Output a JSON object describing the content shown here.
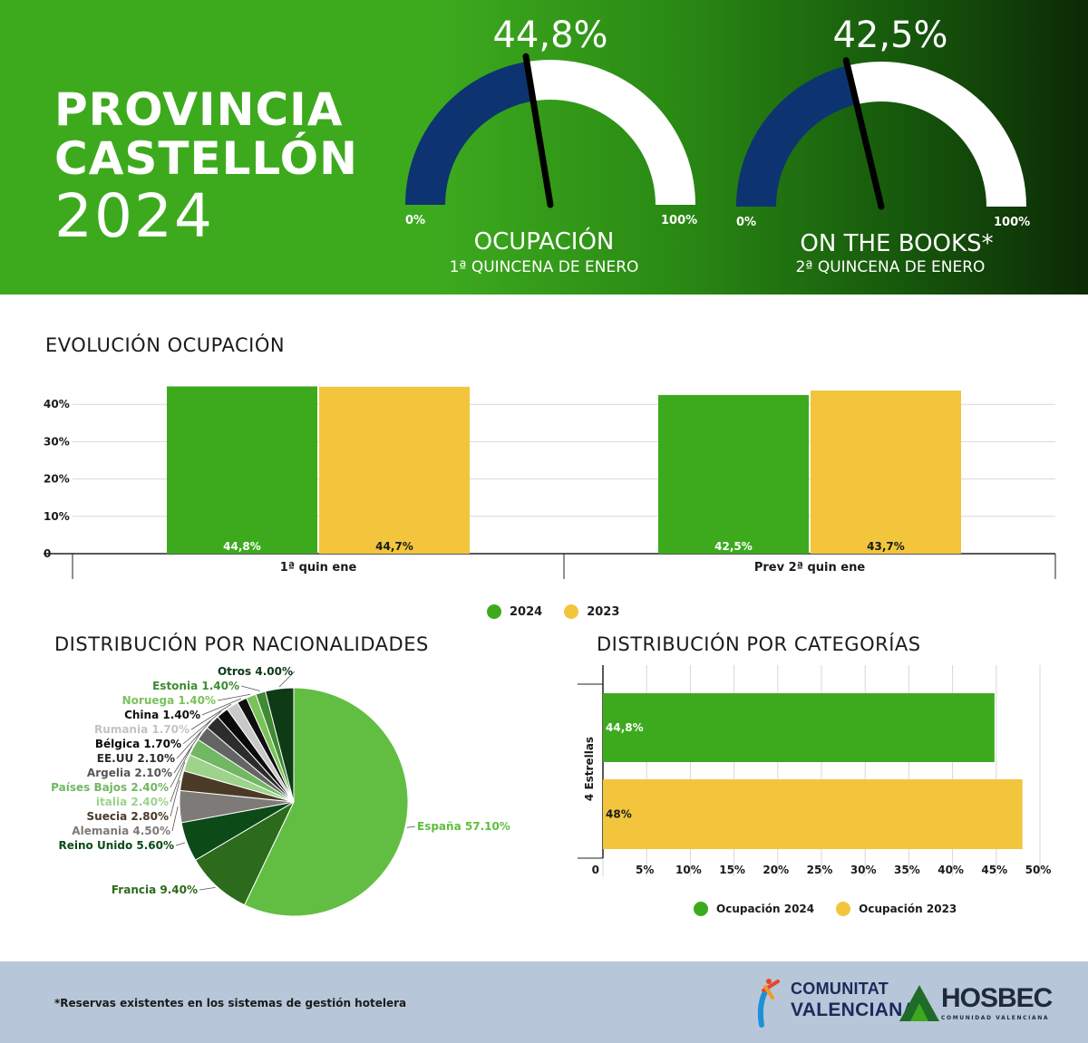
{
  "header": {
    "title_line1": "PROVINCIA",
    "title_line2": "CASTELLÓN",
    "title_line3": "2024"
  },
  "gauges": [
    {
      "value_label": "44,8%",
      "value": 44.8,
      "min_label": "0%",
      "max_label": "100%",
      "title": "OCUPACIÓN",
      "subtitle": "1ª QUINCENA DE ENERO"
    },
    {
      "value_label": "42,5%",
      "value": 42.5,
      "min_label": "0%",
      "max_label": "100%",
      "title": "ON THE BOOKS*",
      "subtitle": "2ª QUINCENA DE ENERO"
    }
  ],
  "colors": {
    "green": "#3daa1e",
    "yellow": "#f2c53d",
    "navy": "#0d3470",
    "white": "#ffffff"
  },
  "evolution": {
    "title": "EVOLUCIÓN OCUPACIÓN",
    "legend": [
      "2024",
      "2023"
    ]
  },
  "nationalities": {
    "title": "DISTRIBUCIÓN POR NACIONALIDADES"
  },
  "categories": {
    "title": "DISTRIBUCIÓN POR CATEGORÍAS",
    "legend": [
      "Ocupación 2024",
      "Ocupación 2023"
    ]
  },
  "chart_data": [
    {
      "type": "bar",
      "title": "EVOLUCIÓN OCUPACIÓN",
      "categories": [
        "1ª quin ene",
        "Prev 2ª quin ene"
      ],
      "series": [
        {
          "name": "2024",
          "values": [
            44.8,
            42.5
          ],
          "labels": [
            "44,8%",
            "42,5%"
          ],
          "color": "#3daa1e"
        },
        {
          "name": "2023",
          "values": [
            44.7,
            43.7
          ],
          "labels": [
            "44,7%",
            "43,7%"
          ],
          "color": "#f2c53d"
        }
      ],
      "y_ticks": [
        "0",
        "10%",
        "20%",
        "30%",
        "40%"
      ],
      "ylim": [
        0,
        45
      ],
      "grid": true,
      "legend": "bottom"
    },
    {
      "type": "pie",
      "title": "DISTRIBUCIÓN POR NACIONALIDADES",
      "slices": [
        {
          "label": "España 57.10%",
          "value": 57.1,
          "color": "#62be42"
        },
        {
          "label": "Francia 9.40%",
          "value": 9.4,
          "color": "#2c6a1c"
        },
        {
          "label": "Reino Unido 5.60%",
          "value": 5.6,
          "color": "#0c4a17"
        },
        {
          "label": "Alemania 4.50%",
          "value": 4.5,
          "color": "#7e7a78"
        },
        {
          "label": "Suecia 2.80%",
          "value": 2.8,
          "color": "#4a3a26"
        },
        {
          "label": "italia 2.40%",
          "value": 2.4,
          "color": "#9dd38a"
        },
        {
          "label": "Países Bajos 2.40%",
          "value": 2.4,
          "color": "#72b763"
        },
        {
          "label": "Argelia 2.10%",
          "value": 2.1,
          "color": "#646464"
        },
        {
          "label": "EE.UU 2.10%",
          "value": 2.1,
          "color": "#2c2c2c"
        },
        {
          "label": "Bélgica 1.70%",
          "value": 1.7,
          "color": "#0a0a0a"
        },
        {
          "label": "Rumania 1.70%",
          "value": 1.7,
          "color": "#c9c9c9"
        },
        {
          "label": "China 1.40%",
          "value": 1.4,
          "color": "#0f0f0f"
        },
        {
          "label": "Noruega 1.40%",
          "value": 1.4,
          "color": "#7ac25a"
        },
        {
          "label": "Estonia 1.40%",
          "value": 1.4,
          "color": "#3f8a33"
        },
        {
          "label": "Otros 4.00%",
          "value": 4.0,
          "color": "#0e3a15"
        }
      ],
      "label_colors": {
        "España 57.10%": "#5fbf3c",
        "Francia 9.40%": "#2c6a1c",
        "Reino Unido 5.60%": "#0c4a17",
        "Alemania 4.50%": "#7e7a78",
        "Suecia 2.80%": "#4a3a26",
        "italia 2.40%": "#9dd38a",
        "Países Bajos 2.40%": "#72b763",
        "Argelia 2.10%": "#555555",
        "EE.UU 2.10%": "#2c2c2c",
        "Bélgica 1.70%": "#0a0a0a",
        "Rumania 1.70%": "#c3c3c3",
        "China 1.40%": "#0f0f0f",
        "Noruega 1.40%": "#7ac25a",
        "Estonia 1.40%": "#3f8a33",
        "Otros 4.00%": "#0e3a15"
      }
    },
    {
      "type": "bar",
      "orientation": "horizontal",
      "title": "DISTRIBUCIÓN POR CATEGORÍAS",
      "categories": [
        "4 Estrellas"
      ],
      "series": [
        {
          "name": "Ocupación 2024",
          "values": [
            44.8
          ],
          "labels": [
            "44,8%"
          ],
          "color": "#3daa1e"
        },
        {
          "name": "Ocupación 2023",
          "values": [
            48
          ],
          "labels": [
            "48%"
          ],
          "color": "#f2c53d"
        }
      ],
      "x_ticks": [
        "0",
        "5%",
        "10%",
        "15%",
        "20%",
        "25%",
        "30%",
        "35%",
        "40%",
        "45%",
        "50%"
      ],
      "xlim": [
        0,
        50
      ],
      "grid": true,
      "legend": "bottom"
    }
  ],
  "footer": {
    "footnote": "*Reservas existentes en los sistemas de gestión hotelera",
    "logo_cv_line1": "COMUNITAT",
    "logo_cv_line2": "VALENCIANA",
    "logo_hosbec": "HOSBEC",
    "logo_hosbec_sub": "COMUNIDAD VALENCIANA"
  }
}
